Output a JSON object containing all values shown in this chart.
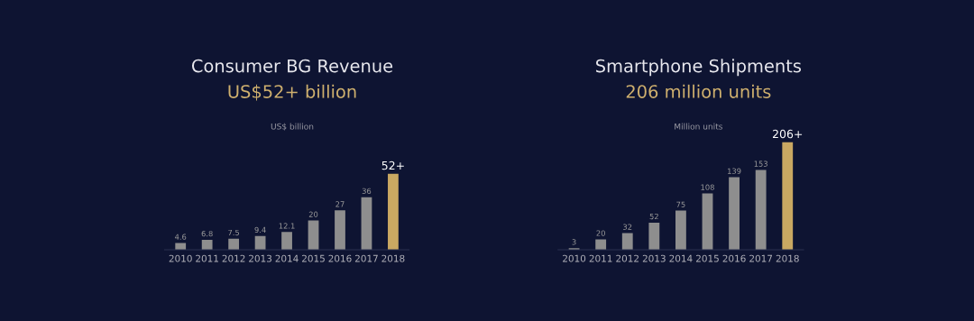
{
  "chart_data": [
    {
      "type": "bar",
      "title": "Consumer BG Revenue",
      "subtitle": "US$52+ billion",
      "annotations": [
        "US$ billion"
      ],
      "categories": [
        "2010",
        "2011",
        "2012",
        "2013",
        "2014",
        "2015",
        "2016",
        "2017",
        "2018"
      ],
      "values": [
        4.6,
        6.8,
        7.5,
        9.4,
        12.1,
        20,
        27,
        36,
        52
      ],
      "colors": [
        "#8e8e8e",
        "#8e8e8e",
        "#8e8e8e",
        "#8e8e8e",
        "#8e8e8e",
        "#8e8e8e",
        "#8e8e8e",
        "#8e8e8e",
        "#c9a862"
      ],
      "value_labels": [
        "4.6",
        "6.8",
        "7.5",
        "9.4",
        "12.1",
        "20",
        "27",
        "36",
        "52+"
      ]
    },
    {
      "type": "bar",
      "title": "Smartphone Shipments",
      "subtitle": "206 million units",
      "annotations": [
        "Million units"
      ],
      "categories": [
        "2010",
        "2011",
        "2012",
        "2013",
        "2014",
        "2015",
        "2016",
        "2017",
        "2018"
      ],
      "values": [
        3,
        20,
        32,
        52,
        75,
        108,
        139,
        153,
        206
      ],
      "colors": [
        "#8e8e8e",
        "#8e8e8e",
        "#8e8e8e",
        "#8e8e8e",
        "#8e8e8e",
        "#8e8e8e",
        "#8e8e8e",
        "#8e8e8e",
        "#c9a862"
      ],
      "value_labels": [
        "3",
        "20",
        "32",
        "52",
        "75",
        "108",
        "139",
        "153",
        "206+"
      ]
    }
  ]
}
